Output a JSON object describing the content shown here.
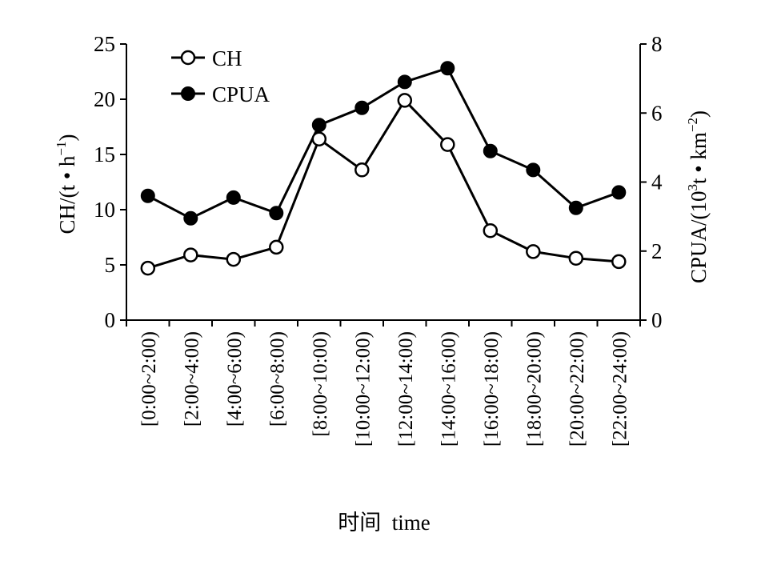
{
  "chart_data": {
    "type": "line",
    "categories": [
      "[0:00~2:00)",
      "[2:00~4:00)",
      "[4:00~6:00)",
      "[6:00~8:00)",
      "[8:00~10:00)",
      "[10:00~12:00)",
      "[12:00~14:00)",
      "[14:00~16:00)",
      "[16:00~18:00)",
      "[18:00~20:00)",
      "[20:00~22:00)",
      "[22:00~24:00)"
    ],
    "xlabel": "时间  time",
    "y_left": {
      "label_main": "CH/(t • h",
      "label_sup": "−1",
      "label_end": ")",
      "range": [
        0,
        25
      ],
      "ticks": [
        "0",
        "5",
        "10",
        "15",
        "20",
        "25"
      ]
    },
    "y_right": {
      "label_main": "CPUA/(10",
      "label_sup1": "3",
      "label_mid": "t • km",
      "label_sup2": "−2",
      "label_end": ")",
      "range": [
        0,
        8
      ],
      "ticks": [
        "0",
        "2",
        "4",
        "6",
        "8"
      ]
    },
    "series": [
      {
        "name": "CH",
        "axis": "left",
        "marker": "open-circle",
        "values": [
          4.7,
          5.9,
          5.5,
          6.6,
          16.4,
          13.6,
          19.9,
          15.9,
          8.1,
          6.2,
          5.6,
          5.3
        ]
      },
      {
        "name": "CPUA",
        "axis": "right",
        "marker": "filled-circle",
        "values": [
          3.6,
          2.95,
          3.55,
          3.1,
          5.65,
          6.15,
          6.9,
          7.3,
          4.9,
          4.35,
          3.25,
          3.7
        ]
      }
    ],
    "legend_position": "top-left",
    "grid": false
  }
}
